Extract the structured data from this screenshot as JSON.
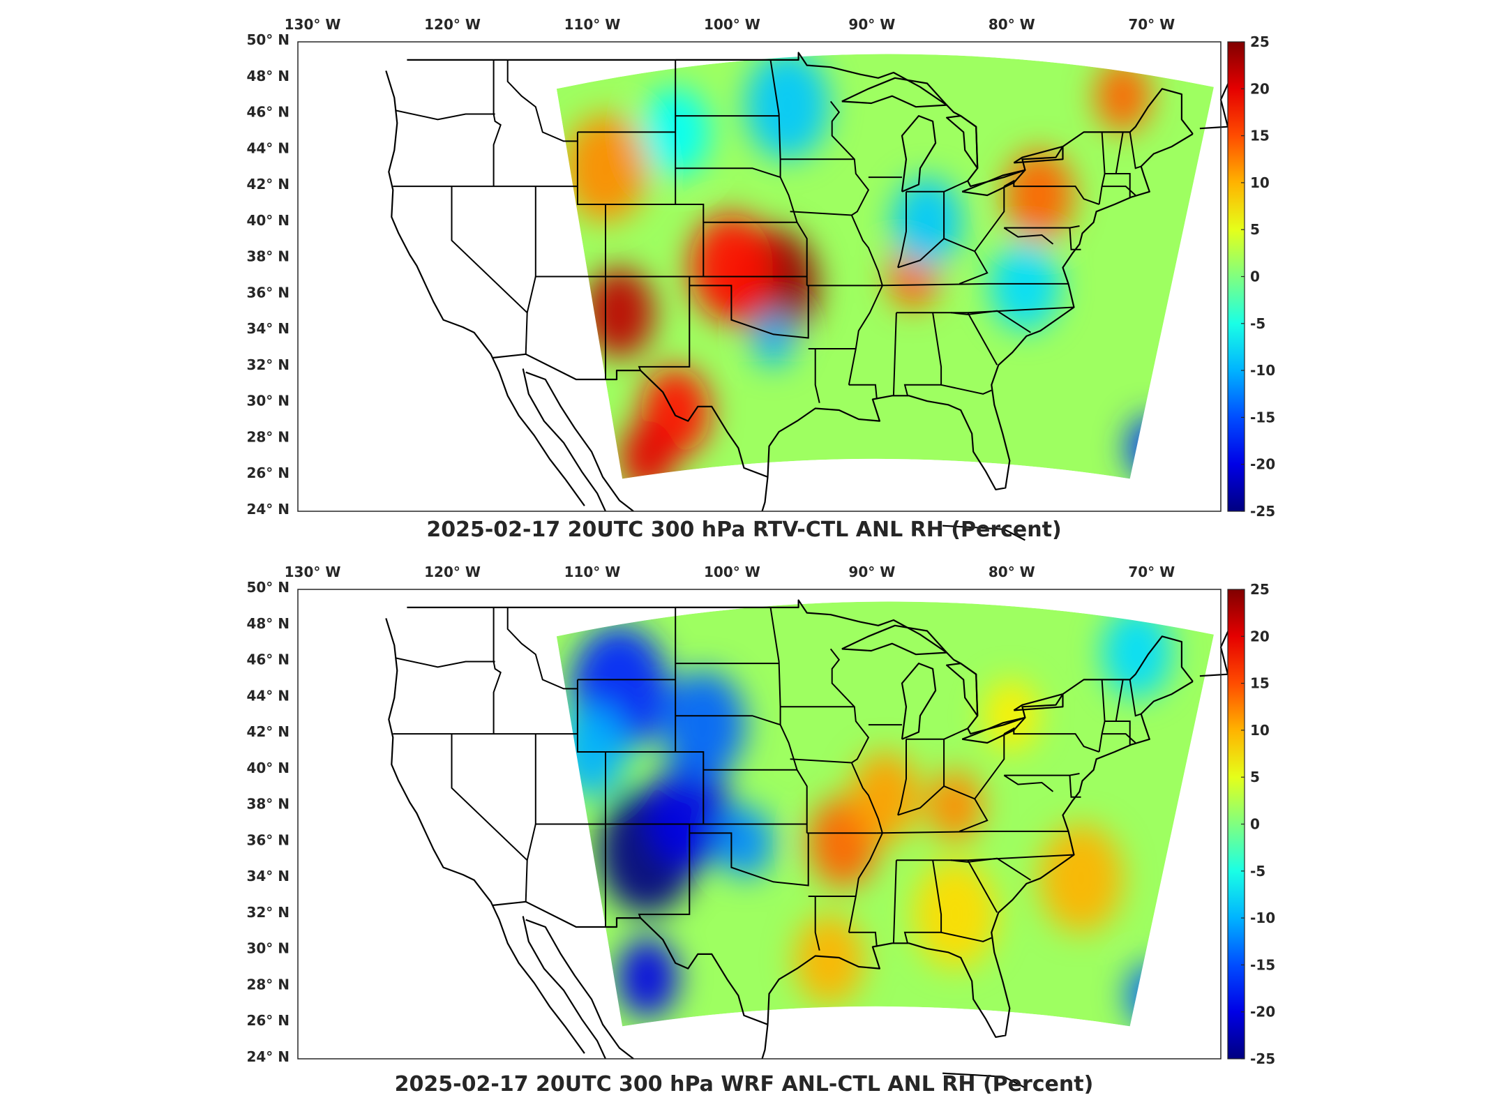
{
  "axes": {
    "lon_ticks": [
      "130° W",
      "120° W",
      "110° W",
      "100° W",
      "90° W",
      "80° W",
      "70° W"
    ],
    "lon_values": [
      -130,
      -120,
      -110,
      -100,
      -90,
      -80,
      -70
    ],
    "lat_ticks": [
      "50° N",
      "48° N",
      "46° N",
      "44° N",
      "42° N",
      "40° N",
      "38° N",
      "36° N",
      "34° N",
      "32° N",
      "30° N",
      "28° N",
      "26° N",
      "24° N"
    ],
    "lat_values": [
      50,
      48,
      46,
      44,
      42,
      40,
      38,
      36,
      34,
      32,
      30,
      28,
      26,
      24
    ],
    "lon_range": [
      -131,
      -65
    ],
    "lat_range": [
      24,
      50
    ]
  },
  "colorbar": {
    "ticks": [
      "25",
      "20",
      "15",
      "10",
      "5",
      "0",
      "-5",
      "-10",
      "-15",
      "-20",
      "-25"
    ],
    "range": [
      -25,
      25
    ],
    "colormap": "jet"
  },
  "panels": [
    {
      "title": "2025-02-17 20UTC 300 hPa RTV-CTL ANL RH (Percent)",
      "field": "RTV-CTL ANL RH difference",
      "blobs": [
        {
          "lon": -97,
          "lat": 36.5,
          "value": 24,
          "r": 3.2
        },
        {
          "lon": -108,
          "lat": 35,
          "value": 22,
          "r": 2.5
        },
        {
          "lon": -100,
          "lat": 37.5,
          "value": 18,
          "r": 3
        },
        {
          "lon": -104,
          "lat": 29.5,
          "value": 18,
          "r": 2.5
        },
        {
          "lon": -106,
          "lat": 27,
          "value": 20,
          "r": 2
        },
        {
          "lon": -87,
          "lat": 37,
          "value": 14,
          "r": 1.8
        },
        {
          "lon": -78,
          "lat": 41.5,
          "value": 14,
          "r": 2.5
        },
        {
          "lon": -109,
          "lat": 43,
          "value": 12,
          "r": 3
        },
        {
          "lon": -72,
          "lat": 47,
          "value": 14,
          "r": 2
        },
        {
          "lon": -96,
          "lat": 46.5,
          "value": -9,
          "r": 3
        },
        {
          "lon": -86,
          "lat": 40,
          "value": -9,
          "r": 2.5
        },
        {
          "lon": -79,
          "lat": 36.5,
          "value": -8,
          "r": 2.5
        },
        {
          "lon": -70,
          "lat": 27.5,
          "value": -16,
          "r": 1.8
        },
        {
          "lon": -97,
          "lat": 33.5,
          "value": -10,
          "r": 1.5
        },
        {
          "lon": -104,
          "lat": 45,
          "value": -6,
          "r": 2.5
        }
      ]
    },
    {
      "title": "2025-02-17 20UTC 300 hPa WRF ANL-CTL ANL RH (Percent)",
      "field": "WRF ANL-CTL ANL RH difference",
      "blobs": [
        {
          "lon": -106,
          "lat": 35.5,
          "value": -25,
          "r": 3.5
        },
        {
          "lon": -103,
          "lat": 37.5,
          "value": -20,
          "r": 3
        },
        {
          "lon": -108,
          "lat": 44.5,
          "value": -17,
          "r": 3.5
        },
        {
          "lon": -102,
          "lat": 42.5,
          "value": -14,
          "r": 3
        },
        {
          "lon": -106,
          "lat": 28.5,
          "value": -20,
          "r": 2.2
        },
        {
          "lon": -99,
          "lat": 36,
          "value": -12,
          "r": 2
        },
        {
          "lon": -110,
          "lat": 41,
          "value": -10,
          "r": 2.5
        },
        {
          "lon": -92,
          "lat": 36,
          "value": 14,
          "r": 2.5
        },
        {
          "lon": -89,
          "lat": 38.5,
          "value": 11,
          "r": 2.5
        },
        {
          "lon": -84,
          "lat": 38,
          "value": 12,
          "r": 2
        },
        {
          "lon": -93,
          "lat": 29.5,
          "value": 10,
          "r": 2.5
        },
        {
          "lon": -75,
          "lat": 34,
          "value": 10,
          "r": 3
        },
        {
          "lon": -84,
          "lat": 32,
          "value": 8,
          "r": 3
        },
        {
          "lon": -70,
          "lat": 27.5,
          "value": -14,
          "r": 1.8
        },
        {
          "lon": -71,
          "lat": 46.5,
          "value": -8,
          "r": 2.5
        },
        {
          "lon": -80,
          "lat": 43,
          "value": 7,
          "r": 2
        }
      ]
    }
  ]
}
